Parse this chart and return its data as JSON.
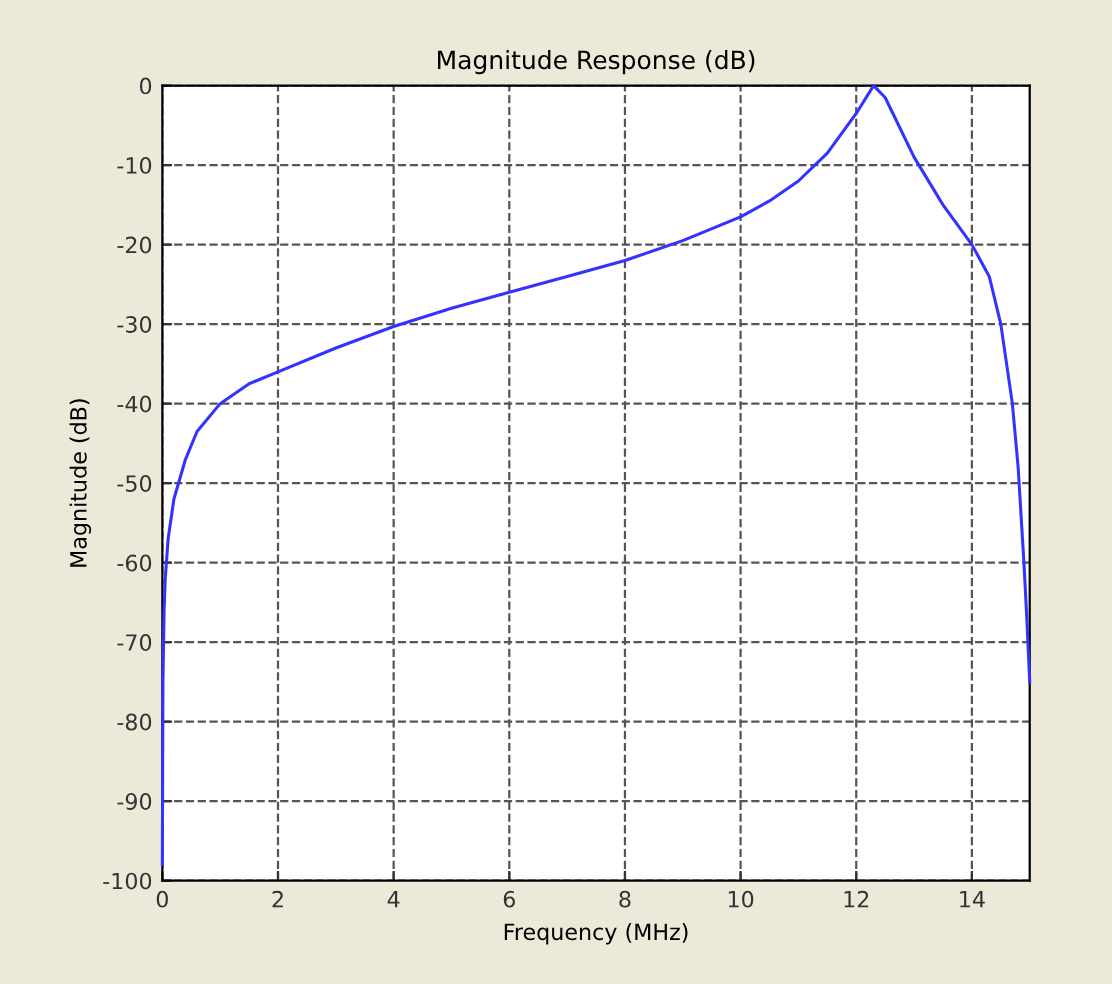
{
  "chart_data": {
    "type": "line",
    "title": "Magnitude Response (dB)",
    "xlabel": "Frequency (MHz)",
    "ylabel": "Magnitude (dB)",
    "series": [
      {
        "color": "#3333ff",
        "x": [
          0,
          0.01,
          0.03,
          0.05,
          0.1,
          0.2,
          0.4,
          0.6,
          1,
          1.5,
          2,
          3,
          4,
          5,
          6,
          7,
          8,
          9,
          10,
          10.5,
          11,
          11.5,
          12,
          12.3,
          12.5,
          13,
          13.5,
          14,
          14.3,
          14.5,
          14.7,
          14.8,
          14.9,
          14.95,
          15
        ],
        "values": [
          -98,
          -75,
          -66,
          -62,
          -57,
          -52,
          -47,
          -43.5,
          -40,
          -37.5,
          -36,
          -33,
          -30.3,
          -28,
          -26,
          -24,
          -22,
          -19.5,
          -16.5,
          -14.5,
          -12,
          -8.5,
          -3.5,
          0,
          -1.5,
          -9,
          -15,
          -20,
          -24,
          -30,
          -40,
          -48,
          -60,
          -67,
          -75
        ]
      }
    ],
    "xlim": [
      0,
      15
    ],
    "ylim": [
      -100,
      0
    ],
    "xticks": [
      0,
      2,
      4,
      6,
      8,
      10,
      12,
      14
    ],
    "yticks": [
      -100,
      -90,
      -80,
      -70,
      -60,
      -50,
      -40,
      -30,
      -20,
      -10,
      0
    ],
    "grid": true,
    "line_style": "solid",
    "marker": "none"
  }
}
